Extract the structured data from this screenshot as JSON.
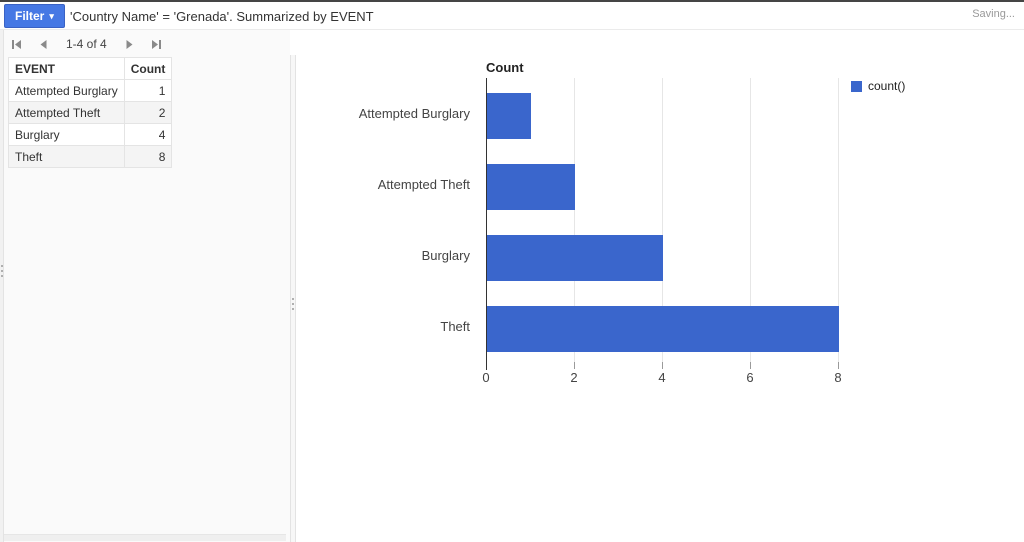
{
  "topbar": {
    "filter_button": {
      "label": "Filter",
      "caret": "▾"
    },
    "filter_text": "'Country Name' = 'Grenada'. Summarized by EVENT",
    "saving_text": "Saving..."
  },
  "pagination": {
    "range_text": "1-4 of 4",
    "icons": [
      "first-page-icon",
      "previous-page-icon",
      "next-page-icon",
      "last-page-icon"
    ]
  },
  "table": {
    "columns": [
      "EVENT",
      "Count"
    ],
    "rows": [
      [
        "Attempted Burglary",
        "1"
      ],
      [
        "Attempted Theft",
        "2"
      ],
      [
        "Burglary",
        "4"
      ],
      [
        "Theft",
        "8"
      ]
    ]
  },
  "chart_data": {
    "type": "bar",
    "orientation": "horizontal",
    "title": "Count",
    "categories": [
      "Attempted Burglary",
      "Attempted Theft",
      "Burglary",
      "Theft"
    ],
    "values": [
      1,
      2,
      4,
      8
    ],
    "series_name": "count()",
    "x_ticks": [
      0,
      2,
      4,
      6,
      8
    ],
    "xlim": [
      0,
      8
    ],
    "grid": true,
    "legend_position": "right",
    "bar_color": "#3a66cc"
  },
  "colors": {
    "button_blue": "#4678e4",
    "button_border": "#3a62c4",
    "bar_blue": "#3a66cc",
    "panel_bg": "#fafafa",
    "gridline": "#e6e6e6",
    "saving_gray": "#999999"
  }
}
